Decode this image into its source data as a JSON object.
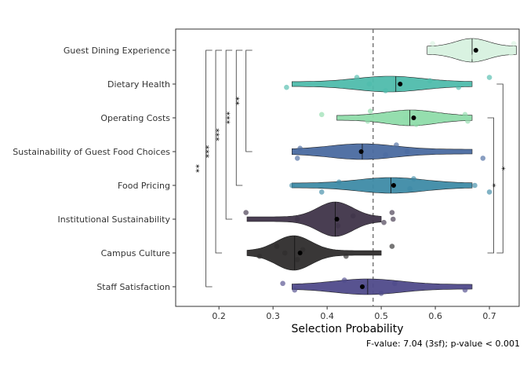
{
  "chart_data": {
    "type": "violin",
    "xlabel": "Selection Probability",
    "caption": "F-value: 7.04 (3sf); p-value < 0.001",
    "xlim": [
      0.12,
      0.755
    ],
    "x_ticks": [
      0.2,
      0.3,
      0.4,
      0.5,
      0.6,
      0.7
    ],
    "reference_line_x": 0.485,
    "categories": [
      {
        "label": "Guest Dining Experience",
        "color": "#d9f2e1",
        "x_range": [
          0.585,
          0.75
        ],
        "mean": 0.675,
        "median": 0.668,
        "bulge": 0.668,
        "points": [
          0.595,
          0.66,
          0.67,
          0.675,
          0.74,
          0.745
        ]
      },
      {
        "label": "Dietary Health",
        "color": "#4fbcac",
        "x_range": [
          0.335,
          0.668
        ],
        "mean": 0.535,
        "median": 0.527,
        "bulge": 0.515,
        "points": [
          0.325,
          0.455,
          0.478,
          0.508,
          0.59,
          0.643,
          0.7
        ]
      },
      {
        "label": "Operating Costs",
        "color": "#8fdcaa",
        "x_range": [
          0.418,
          0.668
        ],
        "mean": 0.56,
        "median": 0.553,
        "bulge": 0.555,
        "points": [
          0.39,
          0.475,
          0.48,
          0.545,
          0.565,
          0.655,
          0.66
        ]
      },
      {
        "label": "Sustainability of Guest Food Choices",
        "color": "#4a6aa0",
        "x_range": [
          0.335,
          0.668
        ],
        "mean": 0.463,
        "median": 0.465,
        "bulge": 0.465,
        "points": [
          0.345,
          0.35,
          0.508,
          0.528,
          0.548,
          0.688
        ]
      },
      {
        "label": "Food Pricing",
        "color": "#3e8ba6",
        "x_range": [
          0.335,
          0.668
        ],
        "mean": 0.523,
        "median": 0.518,
        "bulge": 0.518,
        "points": [
          0.335,
          0.39,
          0.422,
          0.553,
          0.56,
          0.673,
          0.7
        ]
      },
      {
        "label": "Institutional Sustainability",
        "color": "#3f3449",
        "x_range": [
          0.252,
          0.5
        ],
        "mean": 0.418,
        "median": 0.415,
        "bulge": 0.415,
        "points": [
          0.25,
          0.345,
          0.42,
          0.448,
          0.505,
          0.52,
          0.522
        ]
      },
      {
        "label": "Campus Culture",
        "color": "#2e2c2c",
        "x_range": [
          0.252,
          0.5
        ],
        "mean": 0.35,
        "median": 0.34,
        "bulge": 0.338,
        "points": [
          0.275,
          0.307,
          0.322,
          0.345,
          0.355,
          0.435,
          0.52
        ]
      },
      {
        "label": "Staff Satisfaction",
        "color": "#4f4a8a",
        "x_range": [
          0.335,
          0.668
        ],
        "mean": 0.465,
        "median": 0.475,
        "bulge": 0.475,
        "points": [
          0.318,
          0.34,
          0.432,
          0.47,
          0.5,
          0.525,
          0.655
        ]
      }
    ],
    "brackets_left": [
      {
        "from": "Guest Dining Experience",
        "to": "Sustainability of Guest Food Choices",
        "x": 0.25,
        "label": "**"
      },
      {
        "from": "Guest Dining Experience",
        "to": "Food Pricing",
        "x": 0.232,
        "label": "***"
      },
      {
        "from": "Guest Dining Experience",
        "to": "Institutional Sustainability",
        "x": 0.213,
        "label": "***"
      },
      {
        "from": "Guest Dining Experience",
        "to": "Campus Culture",
        "x": 0.194,
        "label": "***"
      },
      {
        "from": "Guest Dining Experience",
        "to": "Staff Satisfaction",
        "x": 0.176,
        "label": "**"
      }
    ],
    "brackets_right": [
      {
        "from": "Dietary Health",
        "to": "Campus Culture",
        "x": 0.725,
        "label": "*"
      },
      {
        "from": "Operating Costs",
        "to": "Campus Culture",
        "x": 0.708,
        "label": "*"
      }
    ]
  }
}
